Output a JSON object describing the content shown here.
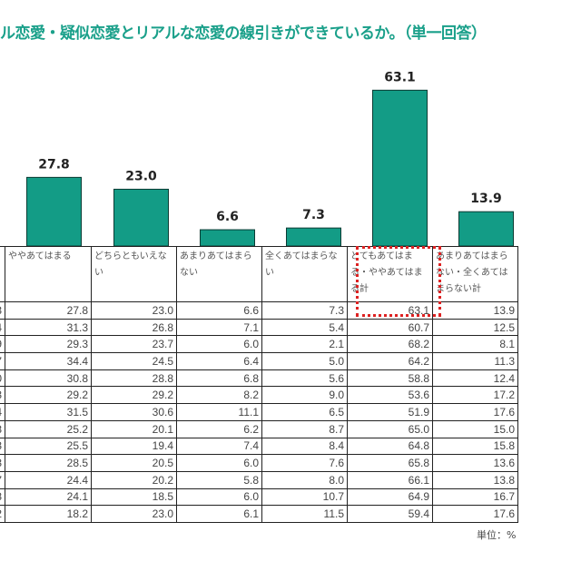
{
  "title": "ル恋愛・疑似恋愛とリアルな恋愛の線引きができているか。（単一回答）",
  "unit_label": "単位：%",
  "chart_data": {
    "type": "bar",
    "categories": [
      "ややあてはまる",
      "どちらともいえない",
      "あまりあてはまらない",
      "全くあてはまらない",
      "とてもあてはまる・ややあてはまる計",
      "あまりあてはまらない・全くあてはまらない計"
    ],
    "values": [
      27.8,
      23.0,
      6.6,
      7.3,
      63.1,
      13.9
    ],
    "value_labels": [
      "27.8",
      "23.0",
      "6.6",
      "7.3",
      "63.1",
      "13.9"
    ],
    "bar_color": "#139c86",
    "highlight_color": "#dd2222"
  },
  "table": {
    "headers": [
      "",
      "ややあてはまる",
      "どちらともいえない",
      "あまりあてはまらない",
      "全くあてはまらない",
      "とてもあてはまる・ややあてはまる計",
      "あまりあてはまらない・全くあてはまらない計"
    ],
    "rows": [
      [
        ".3",
        "27.8",
        "23.0",
        "6.6",
        "7.3",
        "63.1",
        "13.9"
      ],
      [
        ".4",
        "31.3",
        "26.8",
        "7.1",
        "5.4",
        "60.7",
        "12.5"
      ],
      [
        ".9",
        "29.3",
        "23.7",
        "6.0",
        "2.1",
        "68.2",
        "8.1"
      ],
      [
        ".7",
        "34.4",
        "24.5",
        "6.4",
        "5.0",
        "64.2",
        "11.3"
      ],
      [
        ".0",
        "30.8",
        "28.8",
        "6.8",
        "5.6",
        "58.8",
        "12.4"
      ],
      [
        ".3",
        "29.2",
        "29.2",
        "8.2",
        "9.0",
        "53.6",
        "17.2"
      ],
      [
        ".4",
        "31.5",
        "30.6",
        "11.1",
        "6.5",
        "51.9",
        "17.6"
      ],
      [
        ".8",
        "25.2",
        "20.1",
        "6.2",
        "8.7",
        "65.0",
        "15.0"
      ],
      [
        ".3",
        "25.5",
        "19.4",
        "7.4",
        "8.4",
        "64.8",
        "15.8"
      ],
      [
        ".3",
        "28.5",
        "20.5",
        "6.0",
        "7.6",
        "65.8",
        "13.6"
      ],
      [
        ".7",
        "24.4",
        "20.2",
        "5.8",
        "8.0",
        "66.1",
        "13.8"
      ],
      [
        ".8",
        "24.1",
        "18.5",
        "6.0",
        "10.7",
        "64.9",
        "16.7"
      ],
      [
        ".2",
        "18.2",
        "23.0",
        "6.1",
        "11.5",
        "59.4",
        "17.6"
      ]
    ]
  }
}
